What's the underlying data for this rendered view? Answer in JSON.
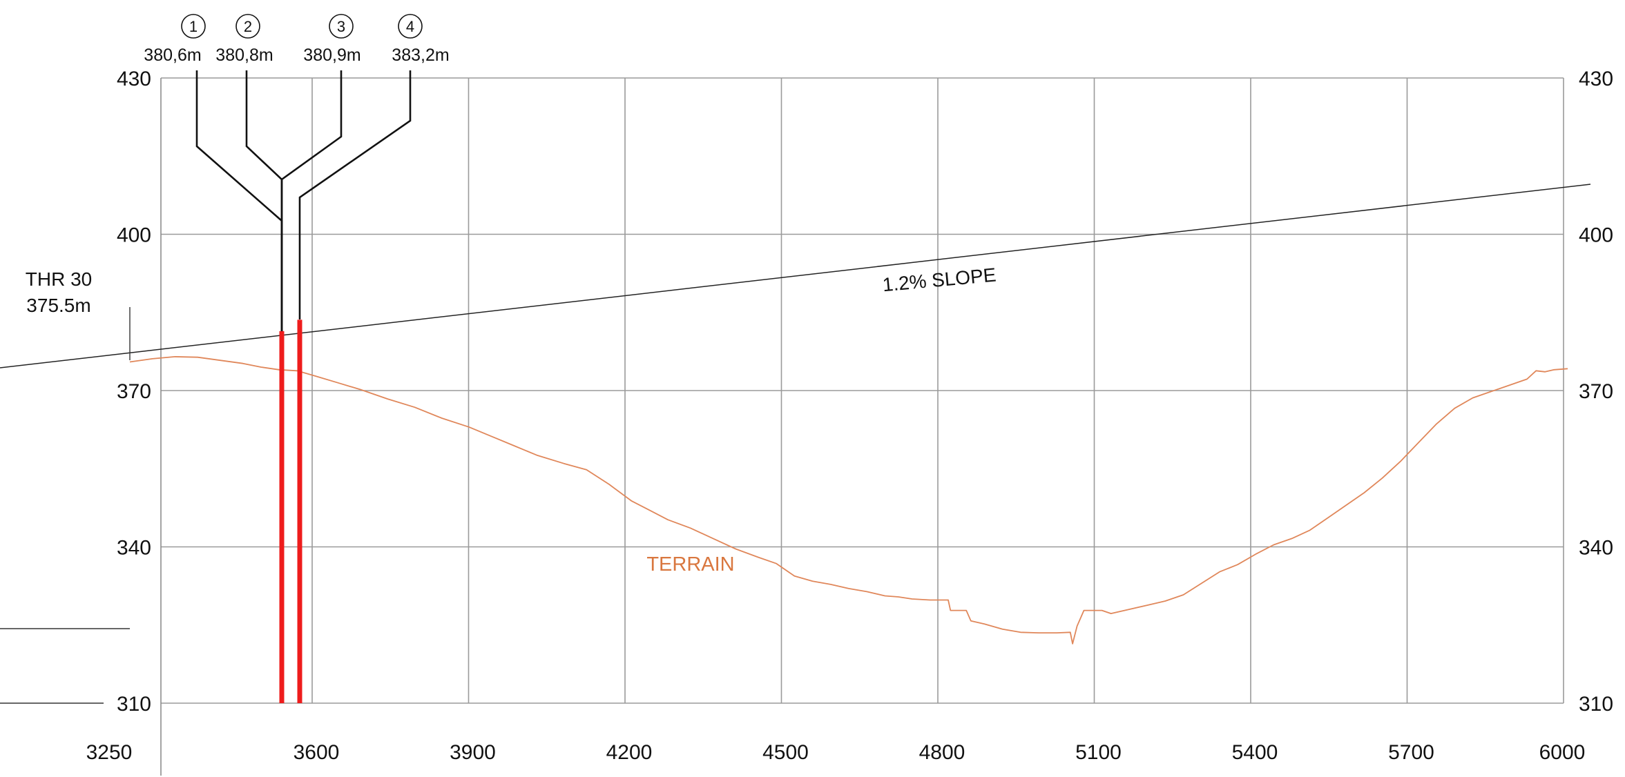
{
  "chart_data": {
    "type": "line",
    "xlim": [
      3250,
      6000
    ],
    "ylim": [
      310,
      430
    ],
    "x_ticks": [
      3250,
      3600,
      3900,
      4200,
      4500,
      4800,
      5100,
      5400,
      5700,
      6000
    ],
    "y_ticks": [
      430,
      400,
      370,
      340,
      310
    ],
    "grid": true,
    "threshold": {
      "line1": "THR 30",
      "line2": "375.5m",
      "x": 3190,
      "elevation": 375.5
    },
    "slope": {
      "label": "1.2% SLOPE",
      "label_x": 4790,
      "label_y": 390.7
    },
    "terrain": {
      "label": "TERRAIN",
      "label_x": 4370,
      "label_y": 336.3,
      "points": [
        [
          3190,
          375.5
        ],
        [
          3240,
          376.1
        ],
        [
          3290,
          376.5
        ],
        [
          3340,
          376.4
        ],
        [
          3390,
          375.8
        ],
        [
          3440,
          375.2
        ],
        [
          3480,
          374.5
        ],
        [
          3520,
          374.0
        ],
        [
          3560,
          373.8
        ],
        [
          3600,
          372.8
        ],
        [
          3650,
          371.5
        ],
        [
          3700,
          370.2
        ],
        [
          3760,
          368.4
        ],
        [
          3820,
          366.8
        ],
        [
          3880,
          364.7
        ],
        [
          3940,
          363.0
        ],
        [
          3990,
          361.2
        ],
        [
          4040,
          359.4
        ],
        [
          4090,
          357.6
        ],
        [
          4150,
          356.0
        ],
        [
          4200,
          354.8
        ],
        [
          4250,
          352.0
        ],
        [
          4300,
          348.8
        ],
        [
          4340,
          347.0
        ],
        [
          4380,
          345.2
        ],
        [
          4430,
          343.6
        ],
        [
          4480,
          341.6
        ],
        [
          4530,
          339.6
        ],
        [
          4580,
          338.0
        ],
        [
          4620,
          336.8
        ],
        [
          4660,
          334.4
        ],
        [
          4700,
          333.4
        ],
        [
          4740,
          332.8
        ],
        [
          4780,
          332.0
        ],
        [
          4820,
          331.4
        ],
        [
          4860,
          330.6
        ],
        [
          4890,
          330.4
        ],
        [
          4920,
          330.0
        ],
        [
          4960,
          329.8
        ],
        [
          5000,
          329.8
        ],
        [
          5005,
          327.8
        ],
        [
          5040,
          327.8
        ],
        [
          5050,
          325.8
        ],
        [
          5080,
          325.2
        ],
        [
          5120,
          324.2
        ],
        [
          5160,
          323.6
        ],
        [
          5200,
          323.5
        ],
        [
          5240,
          323.5
        ],
        [
          5270,
          323.6
        ],
        [
          5275,
          321.4
        ],
        [
          5285,
          324.8
        ],
        [
          5300,
          327.8
        ],
        [
          5340,
          327.8
        ],
        [
          5360,
          327.2
        ],
        [
          5400,
          328.0
        ],
        [
          5440,
          328.8
        ],
        [
          5480,
          329.6
        ],
        [
          5520,
          330.8
        ],
        [
          5560,
          333.0
        ],
        [
          5600,
          335.2
        ],
        [
          5640,
          336.6
        ],
        [
          5680,
          338.6
        ],
        [
          5720,
          340.4
        ],
        [
          5760,
          341.6
        ],
        [
          5800,
          343.2
        ],
        [
          5840,
          345.6
        ],
        [
          5880,
          348.0
        ],
        [
          5920,
          350.4
        ],
        [
          5960,
          353.2
        ],
        [
          6000,
          356.4
        ],
        [
          6040,
          360.0
        ],
        [
          6080,
          363.6
        ],
        [
          6120,
          366.6
        ],
        [
          6160,
          368.6
        ],
        [
          6200,
          369.8
        ],
        [
          6240,
          371.0
        ],
        [
          6280,
          372.2
        ],
        [
          6300,
          373.8
        ],
        [
          6320,
          373.6
        ],
        [
          6340,
          374.0
        ],
        [
          6370,
          374.2
        ]
      ]
    },
    "markers": [
      {
        "number": "1",
        "elevation_label": "380,6m"
      },
      {
        "number": "2",
        "elevation_label": "380,8m"
      },
      {
        "number": "3",
        "elevation_label": "380,9m"
      },
      {
        "number": "4",
        "elevation_label": "383,2m"
      }
    ],
    "piers": [
      {
        "x": 3530,
        "top": 381.4,
        "bottom": 310
      },
      {
        "x": 3565,
        "top": 383.6,
        "bottom": 310
      }
    ],
    "colors": {
      "terrain": "#e0875a",
      "terrain_label": "#d9773f",
      "piers": "#ee1c1c",
      "grid": "#9a9a9a",
      "ink": "#111111"
    }
  }
}
